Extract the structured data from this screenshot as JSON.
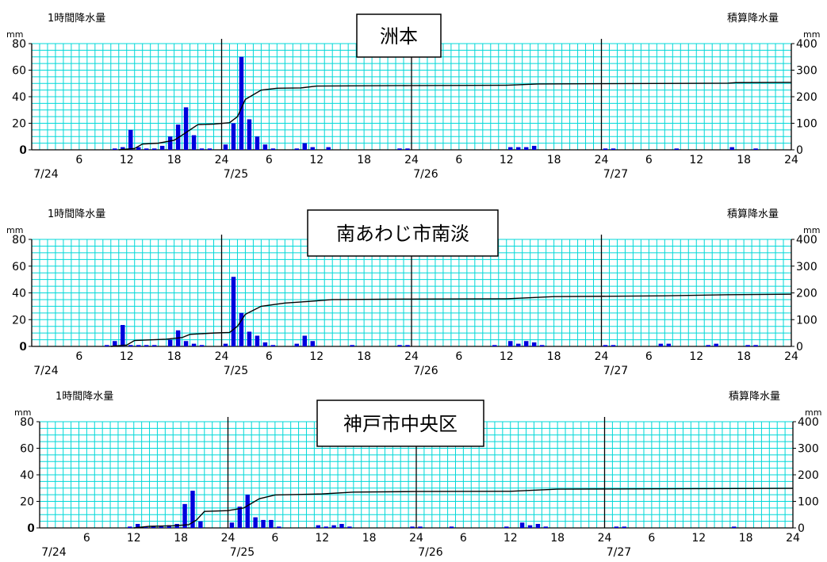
{
  "colors": {
    "grid": "#00d8d8",
    "bar": "#0000dd",
    "line": "#000000",
    "title_border": "#000000"
  },
  "chart_data": [
    {
      "type": "bar",
      "title": "洲本",
      "left_axis_unit": "mm",
      "left_axis_title": "1時間降水量",
      "right_axis_unit": "mm",
      "right_axis_title": "積算降水量",
      "hourly_ylim": [
        0,
        80
      ],
      "hourly_yticks": [
        "0",
        "20",
        "40",
        "60",
        "80"
      ],
      "cumulative_ylim": [
        0,
        400
      ],
      "cumulative_yticks": [
        "0",
        "100",
        "200",
        "300",
        "400"
      ],
      "x_hour_range": [
        0,
        96
      ],
      "x_tick_labels": [
        "6",
        "12",
        "18",
        "24",
        "6",
        "12",
        "18",
        "24",
        "6",
        "12",
        "18",
        "24",
        "6",
        "12",
        "18",
        "24"
      ],
      "date_labels": [
        "7/24",
        "7/25",
        "7/26",
        "7/27"
      ],
      "hourly_bars": [
        {
          "hour": 11,
          "value": 1
        },
        {
          "hour": 12,
          "value": 2
        },
        {
          "hour": 13,
          "value": 15
        },
        {
          "hour": 14,
          "value": 2
        },
        {
          "hour": 15,
          "value": 1
        },
        {
          "hour": 16,
          "value": 1
        },
        {
          "hour": 17,
          "value": 3
        },
        {
          "hour": 18,
          "value": 10
        },
        {
          "hour": 19,
          "value": 19
        },
        {
          "hour": 20,
          "value": 32
        },
        {
          "hour": 21,
          "value": 11
        },
        {
          "hour": 22,
          "value": 1
        },
        {
          "hour": 23,
          "value": 1
        },
        {
          "hour": 25,
          "value": 4
        },
        {
          "hour": 26,
          "value": 20
        },
        {
          "hour": 27,
          "value": 70
        },
        {
          "hour": 28,
          "value": 23
        },
        {
          "hour": 29,
          "value": 10
        },
        {
          "hour": 30,
          "value": 4
        },
        {
          "hour": 31,
          "value": 1
        },
        {
          "hour": 34,
          "value": 1
        },
        {
          "hour": 35,
          "value": 5
        },
        {
          "hour": 36,
          "value": 2
        },
        {
          "hour": 38,
          "value": 2
        },
        {
          "hour": 47,
          "value": 1
        },
        {
          "hour": 48,
          "value": 1
        },
        {
          "hour": 61,
          "value": 2
        },
        {
          "hour": 62,
          "value": 2
        },
        {
          "hour": 63,
          "value": 2
        },
        {
          "hour": 64,
          "value": 3
        },
        {
          "hour": 73,
          "value": 1
        },
        {
          "hour": 74,
          "value": 1
        },
        {
          "hour": 82,
          "value": 1
        },
        {
          "hour": 89,
          "value": 2
        },
        {
          "hour": 92,
          "value": 1
        }
      ],
      "cumulative_line": [
        {
          "hour": 11,
          "value": 0
        },
        {
          "hour": 13,
          "value": 5
        },
        {
          "hour": 14,
          "value": 22
        },
        {
          "hour": 16,
          "value": 25
        },
        {
          "hour": 18,
          "value": 36
        },
        {
          "hour": 19,
          "value": 55
        },
        {
          "hour": 21,
          "value": 95
        },
        {
          "hour": 23,
          "value": 97
        },
        {
          "hour": 25,
          "value": 102
        },
        {
          "hour": 26,
          "value": 125
        },
        {
          "hour": 27,
          "value": 190
        },
        {
          "hour": 29,
          "value": 225
        },
        {
          "hour": 31,
          "value": 232
        },
        {
          "hour": 34,
          "value": 233
        },
        {
          "hour": 36,
          "value": 240
        },
        {
          "hour": 48,
          "value": 242
        },
        {
          "hour": 60,
          "value": 243
        },
        {
          "hour": 64,
          "value": 248
        },
        {
          "hour": 72,
          "value": 249
        },
        {
          "hour": 88,
          "value": 251
        },
        {
          "hour": 89,
          "value": 253
        },
        {
          "hour": 96,
          "value": 254
        }
      ]
    },
    {
      "type": "bar",
      "title": "南あわじ市南淡",
      "left_axis_unit": "mm",
      "left_axis_title": "1時間降水量",
      "right_axis_unit": "mm",
      "right_axis_title": "積算降水量",
      "hourly_ylim": [
        0,
        80
      ],
      "hourly_yticks": [
        "0",
        "20",
        "40",
        "60",
        "80"
      ],
      "cumulative_ylim": [
        0,
        400
      ],
      "cumulative_yticks": [
        "0",
        "100",
        "200",
        "300",
        "400"
      ],
      "x_hour_range": [
        0,
        96
      ],
      "x_tick_labels": [
        "6",
        "12",
        "18",
        "24",
        "6",
        "12",
        "18",
        "24",
        "6",
        "12",
        "18",
        "24",
        "6",
        "12",
        "18",
        "24"
      ],
      "date_labels": [
        "7/24",
        "7/25",
        "7/26",
        "7/27"
      ],
      "hourly_bars": [
        {
          "hour": 10,
          "value": 1
        },
        {
          "hour": 11,
          "value": 4
        },
        {
          "hour": 12,
          "value": 16
        },
        {
          "hour": 13,
          "value": 1
        },
        {
          "hour": 14,
          "value": 1
        },
        {
          "hour": 15,
          "value": 1
        },
        {
          "hour": 16,
          "value": 1
        },
        {
          "hour": 18,
          "value": 5
        },
        {
          "hour": 19,
          "value": 12
        },
        {
          "hour": 20,
          "value": 4
        },
        {
          "hour": 21,
          "value": 2
        },
        {
          "hour": 22,
          "value": 1
        },
        {
          "hour": 25,
          "value": 2
        },
        {
          "hour": 26,
          "value": 52
        },
        {
          "hour": 27,
          "value": 25
        },
        {
          "hour": 28,
          "value": 11
        },
        {
          "hour": 29,
          "value": 8
        },
        {
          "hour": 30,
          "value": 3
        },
        {
          "hour": 31,
          "value": 1
        },
        {
          "hour": 34,
          "value": 2
        },
        {
          "hour": 35,
          "value": 8
        },
        {
          "hour": 36,
          "value": 4
        },
        {
          "hour": 41,
          "value": 1
        },
        {
          "hour": 47,
          "value": 1
        },
        {
          "hour": 48,
          "value": 1
        },
        {
          "hour": 59,
          "value": 1
        },
        {
          "hour": 61,
          "value": 4
        },
        {
          "hour": 62,
          "value": 2
        },
        {
          "hour": 63,
          "value": 4
        },
        {
          "hour": 64,
          "value": 3
        },
        {
          "hour": 65,
          "value": 1
        },
        {
          "hour": 73,
          "value": 1
        },
        {
          "hour": 74,
          "value": 1
        },
        {
          "hour": 80,
          "value": 2
        },
        {
          "hour": 81,
          "value": 2
        },
        {
          "hour": 86,
          "value": 1
        },
        {
          "hour": 87,
          "value": 2
        },
        {
          "hour": 91,
          "value": 1
        },
        {
          "hour": 92,
          "value": 1
        }
      ],
      "cumulative_line": [
        {
          "hour": 10,
          "value": 0
        },
        {
          "hour": 12,
          "value": 5
        },
        {
          "hour": 13,
          "value": 22
        },
        {
          "hour": 17,
          "value": 27
        },
        {
          "hour": 19,
          "value": 33
        },
        {
          "hour": 20,
          "value": 45
        },
        {
          "hour": 23,
          "value": 50
        },
        {
          "hour": 25,
          "value": 52
        },
        {
          "hour": 26,
          "value": 75
        },
        {
          "hour": 27,
          "value": 120
        },
        {
          "hour": 29,
          "value": 150
        },
        {
          "hour": 32,
          "value": 162
        },
        {
          "hour": 35,
          "value": 168
        },
        {
          "hour": 38,
          "value": 175
        },
        {
          "hour": 48,
          "value": 177
        },
        {
          "hour": 60,
          "value": 178
        },
        {
          "hour": 66,
          "value": 186
        },
        {
          "hour": 80,
          "value": 189
        },
        {
          "hour": 88,
          "value": 193
        },
        {
          "hour": 96,
          "value": 195
        }
      ]
    },
    {
      "type": "bar",
      "title": "神戸市中央区",
      "left_axis_unit": "mm",
      "left_axis_title": "1時間降水量",
      "right_axis_unit": "mm",
      "right_axis_title": "積算降水量",
      "hourly_ylim": [
        0,
        80
      ],
      "hourly_yticks": [
        "0",
        "20",
        "40",
        "60",
        "80"
      ],
      "cumulative_ylim": [
        0,
        400
      ],
      "cumulative_yticks": [
        "0",
        "100",
        "200",
        "300",
        "400"
      ],
      "x_hour_range": [
        0,
        96
      ],
      "x_tick_labels": [
        "6",
        "12",
        "18",
        "24",
        "6",
        "12",
        "18",
        "24",
        "6",
        "12",
        "18",
        "24",
        "6",
        "12",
        "18",
        "24"
      ],
      "date_labels": [
        "7/24",
        "7/25",
        "7/26",
        "7/27"
      ],
      "hourly_bars": [
        {
          "hour": 12,
          "value": 1
        },
        {
          "hour": 13,
          "value": 3
        },
        {
          "hour": 14,
          "value": 1
        },
        {
          "hour": 15,
          "value": 1
        },
        {
          "hour": 16,
          "value": 1
        },
        {
          "hour": 17,
          "value": 2
        },
        {
          "hour": 18,
          "value": 3
        },
        {
          "hour": 19,
          "value": 18
        },
        {
          "hour": 20,
          "value": 28
        },
        {
          "hour": 21,
          "value": 5
        },
        {
          "hour": 25,
          "value": 4
        },
        {
          "hour": 26,
          "value": 16
        },
        {
          "hour": 27,
          "value": 25
        },
        {
          "hour": 28,
          "value": 8
        },
        {
          "hour": 29,
          "value": 6
        },
        {
          "hour": 30,
          "value": 6
        },
        {
          "hour": 31,
          "value": 1
        },
        {
          "hour": 36,
          "value": 2
        },
        {
          "hour": 37,
          "value": 1
        },
        {
          "hour": 38,
          "value": 2
        },
        {
          "hour": 39,
          "value": 3
        },
        {
          "hour": 40,
          "value": 1
        },
        {
          "hour": 48,
          "value": 1
        },
        {
          "hour": 49,
          "value": 1
        },
        {
          "hour": 53,
          "value": 1
        },
        {
          "hour": 60,
          "value": 1
        },
        {
          "hour": 62,
          "value": 4
        },
        {
          "hour": 63,
          "value": 2
        },
        {
          "hour": 64,
          "value": 3
        },
        {
          "hour": 65,
          "value": 1
        },
        {
          "hour": 74,
          "value": 1
        },
        {
          "hour": 75,
          "value": 1
        },
        {
          "hour": 89,
          "value": 1
        }
      ],
      "cumulative_line": [
        {
          "hour": 12,
          "value": 0
        },
        {
          "hour": 14,
          "value": 6
        },
        {
          "hour": 17,
          "value": 8
        },
        {
          "hour": 19,
          "value": 12
        },
        {
          "hour": 20,
          "value": 30
        },
        {
          "hour": 21,
          "value": 62
        },
        {
          "hour": 24,
          "value": 65
        },
        {
          "hour": 26,
          "value": 75
        },
        {
          "hour": 28,
          "value": 110
        },
        {
          "hour": 30,
          "value": 124
        },
        {
          "hour": 36,
          "value": 128
        },
        {
          "hour": 40,
          "value": 135
        },
        {
          "hour": 48,
          "value": 137
        },
        {
          "hour": 60,
          "value": 138
        },
        {
          "hour": 66,
          "value": 146
        },
        {
          "hour": 96,
          "value": 149
        }
      ]
    }
  ]
}
